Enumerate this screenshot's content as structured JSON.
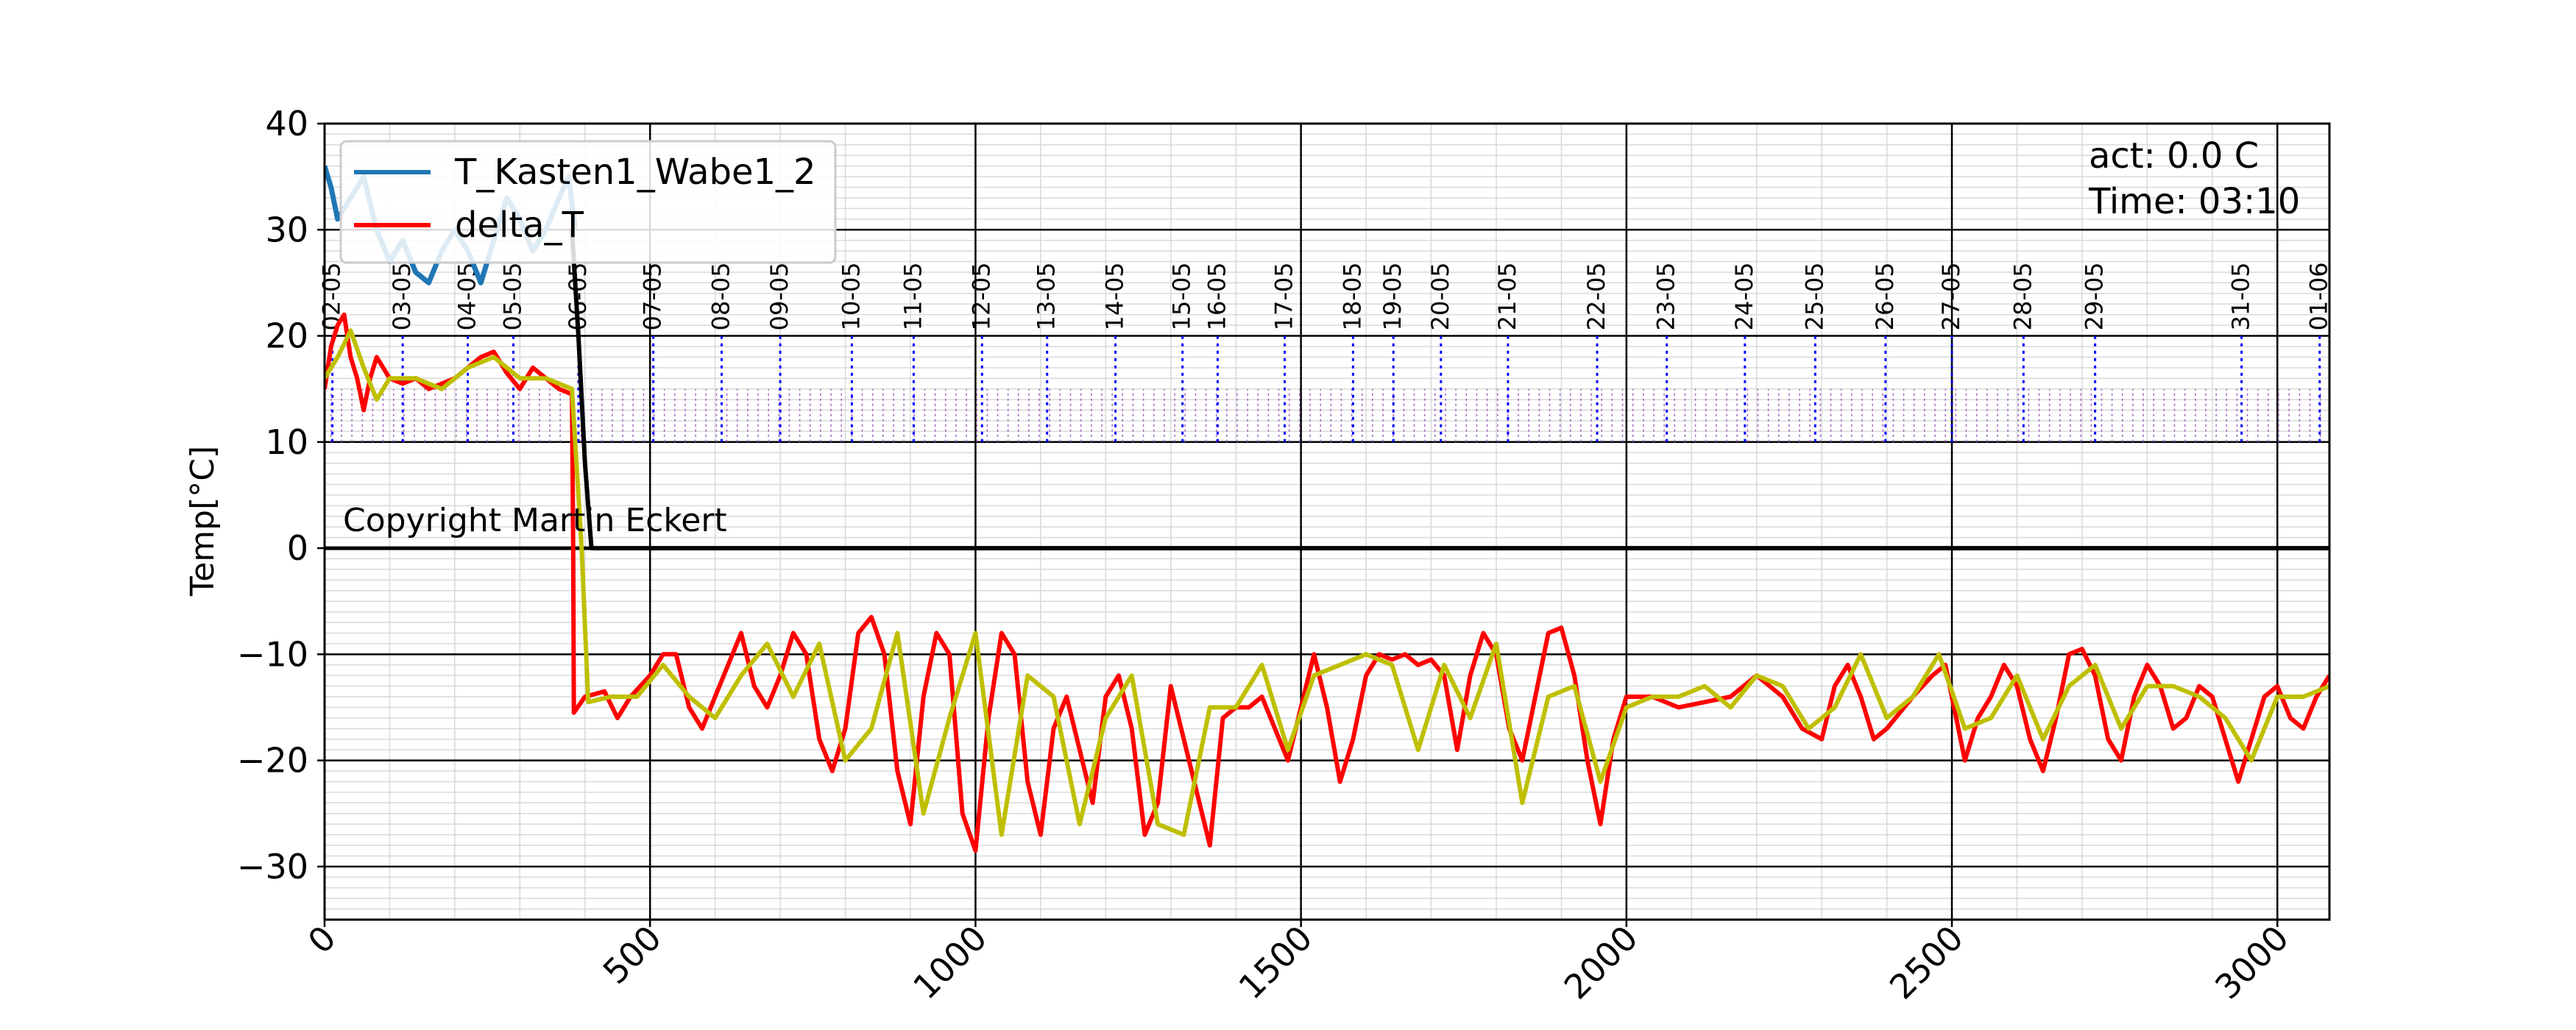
{
  "chart_data": {
    "type": "line",
    "title": "",
    "xlabel": "",
    "ylabel": "Temp[°C]",
    "xlim": [
      0,
      3080
    ],
    "ylim": [
      -35,
      40
    ],
    "x_ticks": [
      0,
      500,
      1000,
      1500,
      2000,
      2500,
      3000
    ],
    "y_ticks": [
      -30,
      -20,
      -10,
      0,
      10,
      20,
      30,
      40
    ],
    "y_tick_labels": [
      "−30",
      "−20",
      "−10",
      "0",
      "10",
      "20",
      "30",
      "40"
    ],
    "grid": true,
    "legend_position": "upper-left",
    "legend": [
      {
        "name": "T_Kasten1_Wabe1_2",
        "color": "#1f77b4"
      },
      {
        "name": "delta_T",
        "color": "#ff0000"
      }
    ],
    "info_lines": [
      "act: 0.0 C",
      "Time: 03:10"
    ],
    "copyright": "Copyright Martin Eckert",
    "day_marks": [
      {
        "x": 12,
        "label": "02-05"
      },
      {
        "x": 120,
        "label": "03-05"
      },
      {
        "x": 220,
        "label": "04-05"
      },
      {
        "x": 290,
        "label": "05-05"
      },
      {
        "x": 390,
        "label": "06-05"
      },
      {
        "x": 505,
        "label": "07-05"
      },
      {
        "x": 610,
        "label": "08-05"
      },
      {
        "x": 700,
        "label": "09-05"
      },
      {
        "x": 810,
        "label": "10-05"
      },
      {
        "x": 905,
        "label": "11-05"
      },
      {
        "x": 1010,
        "label": "12-05"
      },
      {
        "x": 1110,
        "label": "13-05"
      },
      {
        "x": 1215,
        "label": "14-05"
      },
      {
        "x": 1318,
        "label": "15-05"
      },
      {
        "x": 1372,
        "label": "16-05"
      },
      {
        "x": 1475,
        "label": "17-05"
      },
      {
        "x": 1580,
        "label": "18-05"
      },
      {
        "x": 1642,
        "label": "19-05"
      },
      {
        "x": 1715,
        "label": "20-05"
      },
      {
        "x": 1818,
        "label": "21-05"
      },
      {
        "x": 1955,
        "label": "22-05"
      },
      {
        "x": 2062,
        "label": "23-05"
      },
      {
        "x": 2182,
        "label": "24-05"
      },
      {
        "x": 2290,
        "label": "25-05"
      },
      {
        "x": 2398,
        "label": "26-05"
      },
      {
        "x": 2500,
        "label": "27-05"
      },
      {
        "x": 2610,
        "label": "28-05"
      },
      {
        "x": 2720,
        "label": "29-05"
      },
      {
        "x": 2945,
        "label": "31-05"
      },
      {
        "x": 3065,
        "label": "01-06"
      }
    ],
    "series": [
      {
        "name": "T_Kasten1_Wabe1_2",
        "color": "#1f77b4",
        "points": [
          [
            0,
            36
          ],
          [
            10,
            34
          ],
          [
            20,
            31
          ],
          [
            40,
            33
          ],
          [
            60,
            35
          ],
          [
            80,
            30
          ],
          [
            100,
            27
          ],
          [
            120,
            29
          ],
          [
            140,
            26
          ],
          [
            160,
            25
          ],
          [
            180,
            28
          ],
          [
            200,
            30
          ],
          [
            220,
            28
          ],
          [
            240,
            25
          ],
          [
            260,
            29
          ],
          [
            280,
            33
          ],
          [
            300,
            31
          ],
          [
            320,
            28
          ],
          [
            340,
            30
          ],
          [
            360,
            33
          ],
          [
            375,
            35
          ],
          [
            385,
            30
          ]
        ]
      },
      {
        "name": "delta_T",
        "color": "#ff0000",
        "points": [
          [
            0,
            15
          ],
          [
            10,
            19
          ],
          [
            20,
            21
          ],
          [
            30,
            22
          ],
          [
            40,
            18
          ],
          [
            50,
            16
          ],
          [
            60,
            13
          ],
          [
            70,
            16
          ],
          [
            80,
            18
          ],
          [
            90,
            17
          ],
          [
            100,
            16
          ],
          [
            120,
            15.5
          ],
          [
            140,
            16
          ],
          [
            160,
            15
          ],
          [
            180,
            15.5
          ],
          [
            200,
            16
          ],
          [
            220,
            17
          ],
          [
            240,
            18
          ],
          [
            260,
            18.5
          ],
          [
            280,
            16.5
          ],
          [
            300,
            15
          ],
          [
            320,
            17
          ],
          [
            340,
            16
          ],
          [
            360,
            15
          ],
          [
            380,
            14.5
          ],
          [
            382,
            0
          ],
          [
            383,
            -15.5
          ],
          [
            400,
            -14
          ],
          [
            430,
            -13.5
          ],
          [
            450,
            -16
          ],
          [
            470,
            -14
          ],
          [
            500,
            -12
          ],
          [
            520,
            -10
          ],
          [
            540,
            -10
          ],
          [
            560,
            -15
          ],
          [
            580,
            -17
          ],
          [
            600,
            -14
          ],
          [
            620,
            -11
          ],
          [
            640,
            -8
          ],
          [
            660,
            -13
          ],
          [
            680,
            -15
          ],
          [
            700,
            -12
          ],
          [
            720,
            -8
          ],
          [
            740,
            -10
          ],
          [
            760,
            -18
          ],
          [
            780,
            -21
          ],
          [
            800,
            -17
          ],
          [
            820,
            -8
          ],
          [
            840,
            -6.5
          ],
          [
            860,
            -10
          ],
          [
            880,
            -21
          ],
          [
            900,
            -26
          ],
          [
            920,
            -14
          ],
          [
            940,
            -8
          ],
          [
            960,
            -10
          ],
          [
            980,
            -25
          ],
          [
            1000,
            -28.5
          ],
          [
            1020,
            -16
          ],
          [
            1040,
            -8
          ],
          [
            1060,
            -10
          ],
          [
            1080,
            -22
          ],
          [
            1100,
            -27
          ],
          [
            1120,
            -17
          ],
          [
            1140,
            -14
          ],
          [
            1160,
            -19
          ],
          [
            1180,
            -24
          ],
          [
            1200,
            -14
          ],
          [
            1220,
            -12
          ],
          [
            1240,
            -17
          ],
          [
            1260,
            -27
          ],
          [
            1280,
            -24
          ],
          [
            1300,
            -13
          ],
          [
            1320,
            -18
          ],
          [
            1340,
            -23
          ],
          [
            1360,
            -28
          ],
          [
            1380,
            -16
          ],
          [
            1400,
            -15
          ],
          [
            1420,
            -15
          ],
          [
            1440,
            -14
          ],
          [
            1460,
            -17
          ],
          [
            1480,
            -20
          ],
          [
            1500,
            -15
          ],
          [
            1520,
            -10
          ],
          [
            1540,
            -15
          ],
          [
            1560,
            -22
          ],
          [
            1580,
            -18
          ],
          [
            1600,
            -12
          ],
          [
            1620,
            -10
          ],
          [
            1640,
            -10.5
          ],
          [
            1660,
            -10
          ],
          [
            1680,
            -11
          ],
          [
            1700,
            -10.5
          ],
          [
            1720,
            -12
          ],
          [
            1740,
            -19
          ],
          [
            1760,
            -12
          ],
          [
            1780,
            -8
          ],
          [
            1800,
            -10
          ],
          [
            1820,
            -17
          ],
          [
            1840,
            -20
          ],
          [
            1860,
            -14
          ],
          [
            1880,
            -8
          ],
          [
            1900,
            -7.5
          ],
          [
            1920,
            -12
          ],
          [
            1940,
            -20
          ],
          [
            1960,
            -26
          ],
          [
            1980,
            -18
          ],
          [
            2000,
            -14
          ],
          [
            2040,
            -14
          ],
          [
            2080,
            -15
          ],
          [
            2120,
            -14.5
          ],
          [
            2160,
            -14
          ],
          [
            2200,
            -12
          ],
          [
            2240,
            -14
          ],
          [
            2270,
            -17
          ],
          [
            2300,
            -18
          ],
          [
            2320,
            -13
          ],
          [
            2340,
            -11
          ],
          [
            2360,
            -14
          ],
          [
            2380,
            -18
          ],
          [
            2400,
            -17
          ],
          [
            2440,
            -14
          ],
          [
            2470,
            -12
          ],
          [
            2490,
            -11
          ],
          [
            2500,
            -14
          ],
          [
            2520,
            -20
          ],
          [
            2540,
            -16
          ],
          [
            2560,
            -14
          ],
          [
            2580,
            -11
          ],
          [
            2600,
            -13
          ],
          [
            2620,
            -18
          ],
          [
            2640,
            -21
          ],
          [
            2660,
            -16
          ],
          [
            2680,
            -10
          ],
          [
            2700,
            -9.5
          ],
          [
            2720,
            -12
          ],
          [
            2740,
            -18
          ],
          [
            2760,
            -20
          ],
          [
            2780,
            -14
          ],
          [
            2800,
            -11
          ],
          [
            2820,
            -13
          ],
          [
            2840,
            -17
          ],
          [
            2860,
            -16
          ],
          [
            2880,
            -13
          ],
          [
            2900,
            -14
          ],
          [
            2920,
            -18
          ],
          [
            2940,
            -22
          ],
          [
            2960,
            -18
          ],
          [
            2980,
            -14
          ],
          [
            3000,
            -13
          ],
          [
            3020,
            -16
          ],
          [
            3040,
            -17
          ],
          [
            3060,
            -14
          ],
          [
            3080,
            -12
          ]
        ]
      },
      {
        "name": "",
        "color": "#bfbf00",
        "points": [
          [
            0,
            16
          ],
          [
            20,
            18
          ],
          [
            40,
            20.5
          ],
          [
            60,
            17
          ],
          [
            80,
            14
          ],
          [
            100,
            16
          ],
          [
            140,
            16
          ],
          [
            180,
            15
          ],
          [
            220,
            17
          ],
          [
            260,
            18
          ],
          [
            300,
            16
          ],
          [
            340,
            16
          ],
          [
            380,
            15
          ],
          [
            395,
            0
          ],
          [
            405,
            -14.5
          ],
          [
            440,
            -14
          ],
          [
            480,
            -14
          ],
          [
            520,
            -11
          ],
          [
            560,
            -14
          ],
          [
            600,
            -16
          ],
          [
            640,
            -12
          ],
          [
            680,
            -9
          ],
          [
            720,
            -14
          ],
          [
            760,
            -9
          ],
          [
            800,
            -20
          ],
          [
            840,
            -17
          ],
          [
            880,
            -8
          ],
          [
            920,
            -25
          ],
          [
            960,
            -16
          ],
          [
            1000,
            -8
          ],
          [
            1040,
            -27
          ],
          [
            1080,
            -12
          ],
          [
            1120,
            -14
          ],
          [
            1160,
            -26
          ],
          [
            1200,
            -16
          ],
          [
            1240,
            -12
          ],
          [
            1280,
            -26
          ],
          [
            1320,
            -27
          ],
          [
            1360,
            -15
          ],
          [
            1400,
            -15
          ],
          [
            1440,
            -11
          ],
          [
            1480,
            -19
          ],
          [
            1520,
            -12
          ],
          [
            1560,
            -11
          ],
          [
            1600,
            -10
          ],
          [
            1640,
            -11
          ],
          [
            1680,
            -19
          ],
          [
            1720,
            -11
          ],
          [
            1760,
            -16
          ],
          [
            1800,
            -9
          ],
          [
            1840,
            -24
          ],
          [
            1880,
            -14
          ],
          [
            1920,
            -13
          ],
          [
            1960,
            -22
          ],
          [
            2000,
            -15
          ],
          [
            2040,
            -14
          ],
          [
            2080,
            -14
          ],
          [
            2120,
            -13
          ],
          [
            2160,
            -15
          ],
          [
            2200,
            -12
          ],
          [
            2240,
            -13
          ],
          [
            2280,
            -17
          ],
          [
            2320,
            -15
          ],
          [
            2360,
            -10
          ],
          [
            2400,
            -16
          ],
          [
            2440,
            -14
          ],
          [
            2480,
            -10
          ],
          [
            2520,
            -17
          ],
          [
            2560,
            -16
          ],
          [
            2600,
            -12
          ],
          [
            2640,
            -18
          ],
          [
            2680,
            -13
          ],
          [
            2720,
            -11
          ],
          [
            2760,
            -17
          ],
          [
            2800,
            -13
          ],
          [
            2840,
            -13
          ],
          [
            2880,
            -14
          ],
          [
            2920,
            -16
          ],
          [
            2960,
            -20
          ],
          [
            3000,
            -14
          ],
          [
            3040,
            -14
          ],
          [
            3080,
            -13
          ]
        ]
      },
      {
        "name": "",
        "color": "#000000",
        "points": [
          [
            380,
            30
          ],
          [
            390,
            20
          ],
          [
            400,
            8
          ],
          [
            410,
            0
          ],
          [
            3080,
            0
          ]
        ]
      }
    ]
  }
}
